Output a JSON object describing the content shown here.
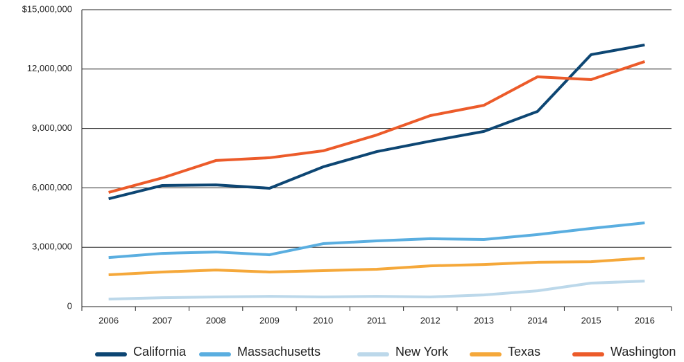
{
  "chart_data": {
    "type": "line",
    "categories": [
      "2006",
      "2007",
      "2008",
      "2009",
      "2010",
      "2011",
      "2012",
      "2013",
      "2014",
      "2015",
      "2016"
    ],
    "series": [
      {
        "name": "California",
        "color": "#0d4673",
        "values": [
          5450000,
          6120000,
          6150000,
          5980000,
          7060000,
          7830000,
          8360000,
          8850000,
          9860000,
          12730000,
          13220000
        ]
      },
      {
        "name": "Massachusetts",
        "color": "#5aaee0",
        "values": [
          2480000,
          2690000,
          2760000,
          2620000,
          3180000,
          3320000,
          3430000,
          3390000,
          3640000,
          3950000,
          4230000
        ]
      },
      {
        "name": "New York",
        "color": "#bcd8ea",
        "values": [
          380000,
          450000,
          490000,
          520000,
          490000,
          520000,
          490000,
          590000,
          800000,
          1190000,
          1290000
        ]
      },
      {
        "name": "Texas",
        "color": "#f5a83a",
        "values": [
          1610000,
          1750000,
          1850000,
          1750000,
          1820000,
          1890000,
          2060000,
          2130000,
          2240000,
          2270000,
          2450000
        ]
      },
      {
        "name": "Washington",
        "color": "#ec5b2a",
        "values": [
          5770000,
          6500000,
          7380000,
          7520000,
          7870000,
          8670000,
          9650000,
          10170000,
          11610000,
          11470000,
          12380000
        ]
      }
    ],
    "ylim": [
      0,
      15000000
    ],
    "yticks": [
      0,
      {
        "value": 3000000,
        "label": "3,000,000"
      },
      {
        "value": 6000000,
        "label": "6,000,000"
      },
      {
        "value": 9000000,
        "label": "9,000,000"
      },
      {
        "value": 12000000,
        "label": "12,000,000"
      },
      {
        "value": 15000000,
        "label": "$15,000,000"
      }
    ],
    "grid": true
  }
}
